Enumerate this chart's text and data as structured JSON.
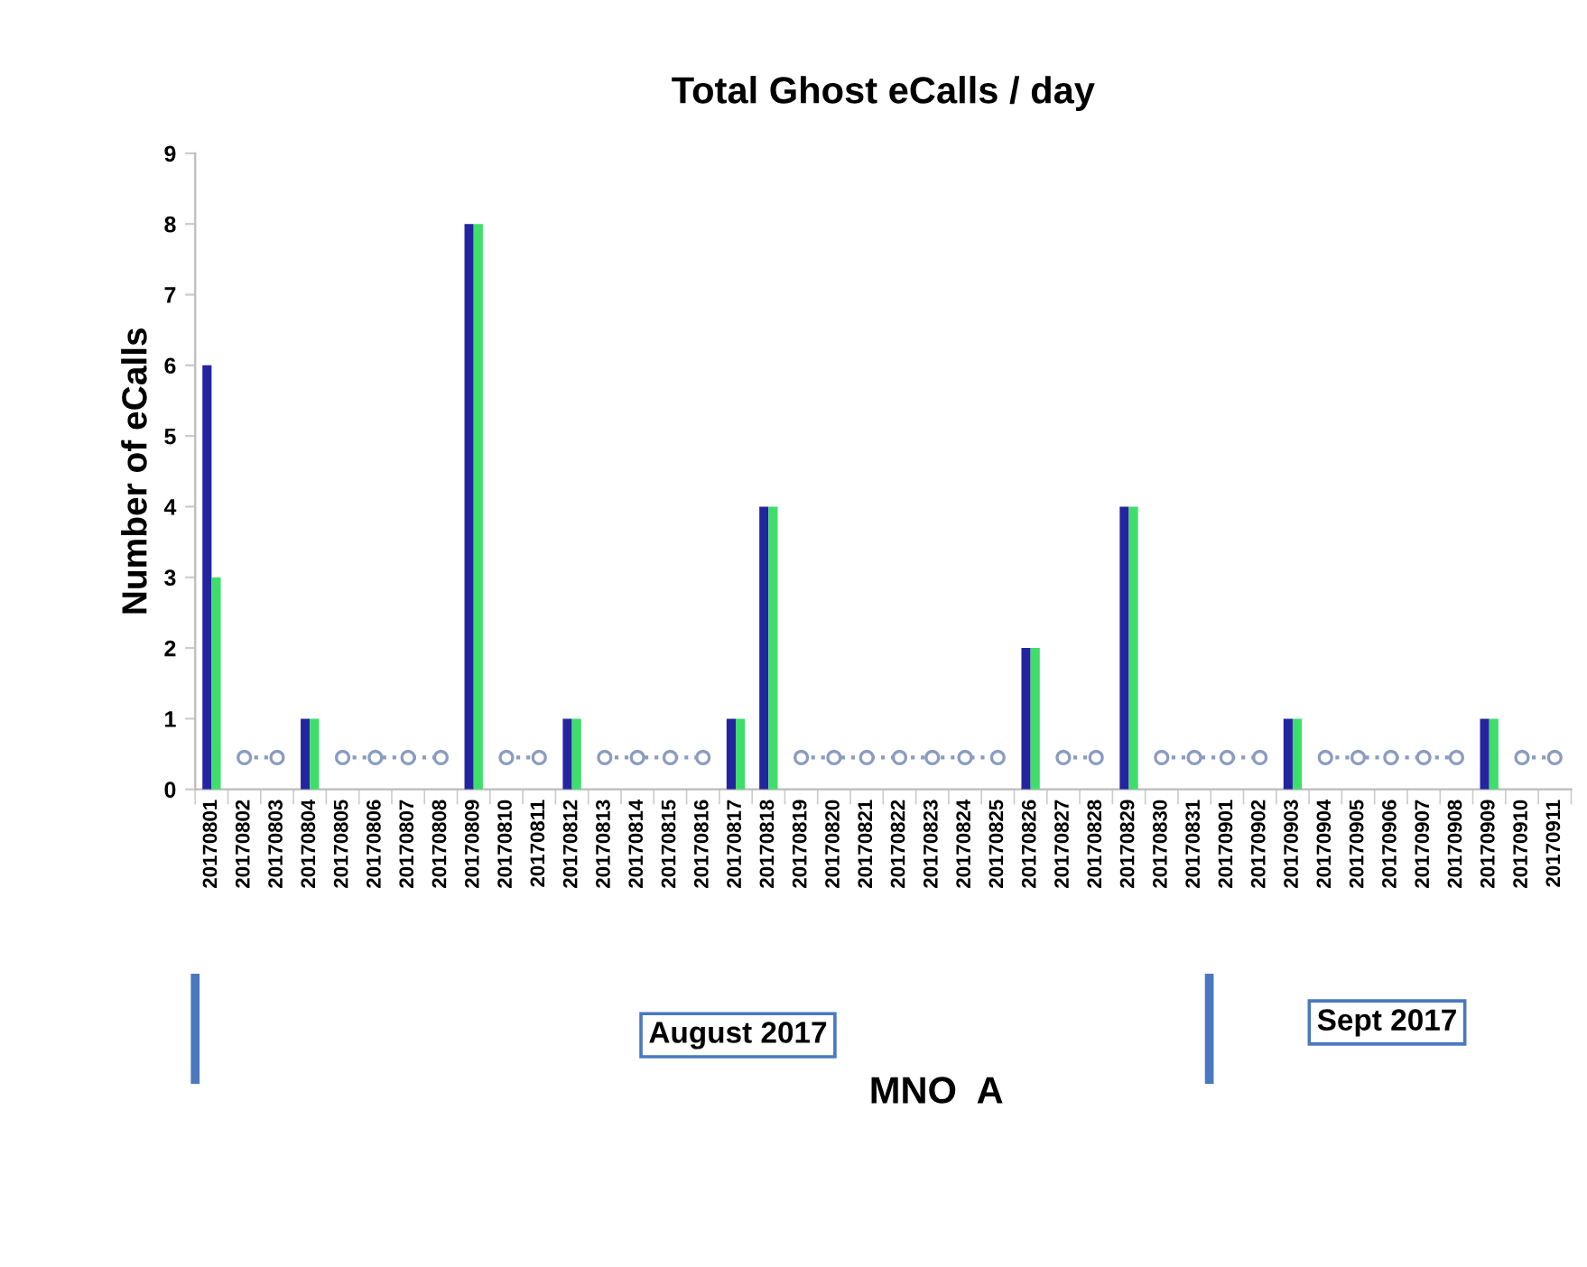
{
  "chart_data": {
    "type": "bar",
    "title": "Total Ghost eCalls / day",
    "ylabel": "Number of eCalls",
    "categories": [
      "20170801",
      "20170802",
      "20170803",
      "20170804",
      "20170805",
      "20170806",
      "20170807",
      "20170808",
      "20170809",
      "20170810",
      "20170811",
      "20170812",
      "20170813",
      "20170814",
      "20170815",
      "20170816",
      "20170817",
      "20170818",
      "20170819",
      "20170820",
      "20170821",
      "20170822",
      "20170823",
      "20170824",
      "20170825",
      "20170826",
      "20170827",
      "20170828",
      "20170829",
      "20170830",
      "20170831",
      "20170901",
      "20170902",
      "20170903",
      "20170904",
      "20170905",
      "20170906",
      "20170907",
      "20170908",
      "20170909",
      "20170910",
      "20170911"
    ],
    "series": [
      {
        "color": "#2424a0",
        "values": [
          6,
          0,
          0,
          1,
          0,
          0,
          0,
          0,
          8,
          0,
          0,
          1,
          0,
          0,
          0,
          0,
          1,
          4,
          0,
          0,
          0,
          0,
          0,
          0,
          0,
          2,
          0,
          0,
          4,
          0,
          0,
          0,
          0,
          1,
          0,
          0,
          0,
          0,
          0,
          1,
          0,
          0
        ]
      },
      {
        "color": "#3ede6a",
        "values": [
          3,
          0,
          0,
          1,
          0,
          0,
          0,
          0,
          8,
          0,
          0,
          1,
          0,
          0,
          0,
          0,
          1,
          4,
          0,
          0,
          0,
          0,
          0,
          0,
          0,
          2,
          0,
          0,
          4,
          0,
          0,
          0,
          0,
          1,
          0,
          0,
          0,
          0,
          0,
          1,
          0,
          0
        ]
      },
      {
        "type": "line",
        "color": "#8a9cc0",
        "marker": "circle",
        "line_style": "dotted",
        "values": [
          null,
          0.45,
          0.45,
          null,
          0.45,
          0.45,
          0.45,
          0.45,
          null,
          0.45,
          0.45,
          null,
          0.45,
          0.45,
          0.45,
          0.45,
          null,
          null,
          0.45,
          0.45,
          0.45,
          0.45,
          0.45,
          0.45,
          0.45,
          null,
          0.45,
          0.45,
          null,
          0.45,
          0.45,
          0.45,
          0.45,
          null,
          0.45,
          0.45,
          0.45,
          0.45,
          0.45,
          null,
          0.45,
          0.45
        ]
      }
    ],
    "ylim": [
      0,
      9
    ],
    "yticks": [
      0,
      1,
      2,
      3,
      4,
      5,
      6,
      7,
      8,
      9
    ],
    "grid": false,
    "legend": false,
    "annotations": [
      "August 2017",
      "Sept 2017",
      "MNO  A"
    ]
  }
}
